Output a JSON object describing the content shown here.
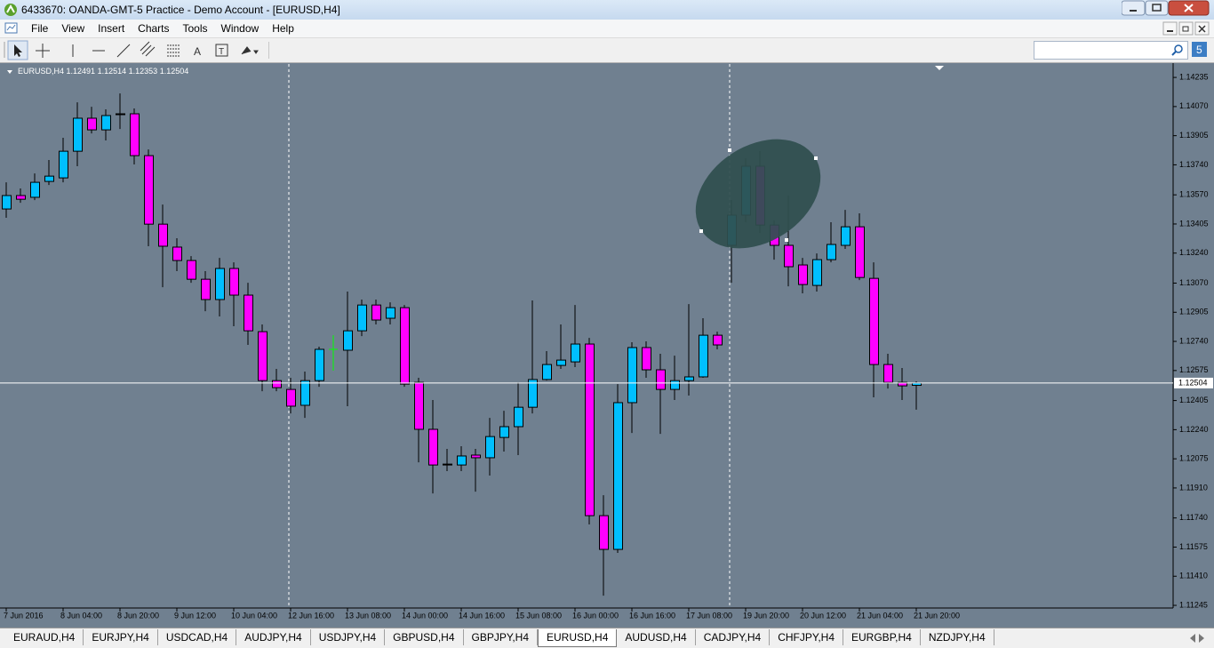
{
  "window": {
    "title": "6433670: OANDA-GMT-5 Practice - Demo Account - [EURUSD,H4]",
    "menu": [
      "File",
      "View",
      "Insert",
      "Charts",
      "Tools",
      "Window",
      "Help"
    ],
    "tabs": [
      "EURAUD,H4",
      "EURJPY,H4",
      "USDCAD,H4",
      "AUDJPY,H4",
      "USDJPY,H4",
      "GBPUSD,H4",
      "GBPJPY,H4",
      "EURUSD,H4",
      "AUDUSD,H4",
      "CADJPY,H4",
      "CHFJPY,H4",
      "EURGBP,H4",
      "NZDJPY,H4"
    ],
    "active_tab": 7
  },
  "chart_data": {
    "type": "candlestick",
    "symbol": "EURUSD,H4",
    "categories": [
      "7 Jun 2016",
      null,
      null,
      null,
      "8 Jun 04:00",
      null,
      null,
      null,
      "8 Jun 20:00",
      null,
      null,
      null,
      "9 Jun 12:00",
      null,
      null,
      null,
      "10 Jun 04:00",
      null,
      null,
      null,
      "12 Jun 16:00",
      null,
      null,
      null,
      "13 Jun 08:00",
      null,
      null,
      null,
      "14 Jun 00:00",
      null,
      null,
      null,
      "14 Jun 16:00",
      null,
      null,
      null,
      "15 Jun 08:00",
      null,
      null,
      null,
      "16 Jun 00:00",
      null,
      null,
      null,
      "16 Jun 16:00",
      null,
      null,
      null,
      "17 Jun 08:00",
      null,
      null,
      null,
      "19 Jun 20:00",
      null,
      null,
      null,
      "20 Jun 12:00",
      null,
      null,
      null,
      "21 Jun 04:00",
      null,
      null,
      null,
      "21 Jun 20:00"
    ],
    "open": [
      1.1349,
      1.13566,
      1.13556,
      1.13646,
      1.13666,
      1.13817,
      1.14004,
      1.13938,
      1.14029,
      1.14029,
      1.13792,
      1.13404,
      1.13274,
      1.13198,
      1.13092,
      1.12977,
      1.13153,
      1.13002,
      1.12795,
      1.12518,
      1.12468,
      1.12378,
      1.12518,
      1.12695,
      1.1269,
      1.128,
      1.12946,
      1.12871,
      1.12931,
      1.12508,
      1.12242,
      1.12045,
      1.1204,
      1.12096,
      1.12081,
      1.12196,
      1.12257,
      1.12367,
      1.12524,
      1.12604,
      1.12624,
      1.12725,
      1.11753,
      1.11562,
      1.12393,
      1.12705,
      1.12579,
      1.12468,
      1.12518,
      1.12539,
      1.12775,
      1.13284,
      1.13455,
      1.13732,
      1.13399,
      1.13284,
      1.13173,
      1.13057,
      1.13203,
      1.13284,
      1.13389,
      1.13097,
      1.12609,
      1.12508,
      1.12491
    ],
    "high": [
      1.13641,
      1.13606,
      1.13691,
      1.13767,
      1.13893,
      1.14094,
      1.14069,
      1.14054,
      1.14144,
      1.14059,
      1.13827,
      1.13515,
      1.13324,
      1.13223,
      1.13138,
      1.13213,
      1.13188,
      1.13072,
      1.12836,
      1.12584,
      1.12534,
      1.12569,
      1.1271,
      1.12775,
      1.13022,
      1.12977,
      1.12977,
      1.12961,
      1.12946,
      1.12534,
      1.12408,
      1.12131,
      1.12146,
      1.12131,
      1.12307,
      1.12347,
      1.12508,
      1.12972,
      1.12685,
      1.12836,
      1.12946,
      1.1276,
      1.11869,
      1.12498,
      1.12735,
      1.1274,
      1.1267,
      1.12659,
      1.12951,
      1.12871,
      1.12795,
      1.1354,
      1.13777,
      1.13817,
      1.13425,
      1.13566,
      1.13213,
      1.13238,
      1.13415,
      1.13485,
      1.13465,
      1.13188,
      1.1267,
      1.12589,
      1.12514
    ],
    "low": [
      1.1344,
      1.13525,
      1.1354,
      1.13626,
      1.13641,
      1.13732,
      1.13918,
      1.13878,
      1.13943,
      1.13742,
      1.13279,
      1.13047,
      1.13138,
      1.13072,
      1.12911,
      1.12881,
      1.12826,
      1.1272,
      1.12458,
      1.12458,
      1.12332,
      1.12307,
      1.12483,
      1.12574,
      1.12373,
      1.1277,
      1.12836,
      1.12836,
      1.12483,
      1.12055,
      1.11879,
      1.12005,
      1.12005,
      1.11889,
      1.1198,
      1.12116,
      1.12096,
      1.12332,
      1.12518,
      1.12584,
      1.12594,
      1.11703,
      1.113,
      1.11542,
      1.12221,
      1.12534,
      1.12216,
      1.12408,
      1.12433,
      1.12534,
      1.12695,
      1.13072,
      1.13415,
      1.13354,
      1.13203,
      1.13052,
      1.13012,
      1.13022,
      1.13188,
      1.13264,
      1.13087,
      1.12423,
      1.12473,
      1.12408,
      1.12353
    ],
    "close": [
      1.13566,
      1.13545,
      1.13641,
      1.13676,
      1.13817,
      1.14004,
      1.13938,
      1.14019,
      1.14024,
      1.13792,
      1.13404,
      1.13279,
      1.13198,
      1.13092,
      1.12977,
      1.13153,
      1.13002,
      1.128,
      1.12518,
      1.12478,
      1.12373,
      1.12518,
      1.12695,
      1.12695,
      1.128,
      1.12946,
      1.12861,
      1.12931,
      1.12498,
      1.12242,
      1.1204,
      1.1204,
      1.12091,
      1.12081,
      1.12201,
      1.12257,
      1.12367,
      1.12524,
      1.12609,
      1.12634,
      1.12725,
      1.11753,
      1.11562,
      1.12393,
      1.12705,
      1.12579,
      1.12468,
      1.12518,
      1.12539,
      1.12775,
      1.1272,
      1.13455,
      1.13732,
      1.13399,
      1.13284,
      1.13163,
      1.13062,
      1.13203,
      1.13289,
      1.13389,
      1.13102,
      1.12609,
      1.12508,
      1.12488,
      1.12504
    ],
    "up_color": "#00bfff",
    "down_color": "#ff00ff",
    "doji_color": "#00ff00",
    "background": "#708090",
    "ylim": [
      1.1123,
      1.14311
    ],
    "yticks": [
      1.14235,
      {
        "value": 1.1407,
        "label": "1.14070"
      },
      1.13905,
      {
        "value": 1.1374,
        "label": "1.13740"
      },
      {
        "value": 1.1357,
        "label": "1.13570"
      },
      1.13405,
      {
        "value": 1.1324,
        "label": "1.13240"
      },
      {
        "value": 1.1307,
        "label": "1.13070"
      },
      1.12905,
      {
        "value": 1.1274,
        "label": "1.12740"
      },
      1.12575,
      1.12405,
      {
        "value": 1.1224,
        "label": "1.12240"
      },
      1.12075,
      {
        "value": 1.1191,
        "label": "1.11910"
      },
      {
        "value": 1.1174,
        "label": "1.11740"
      },
      1.11575,
      {
        "value": 1.1141,
        "label": "1.11410"
      },
      1.11245
    ]
  }
}
